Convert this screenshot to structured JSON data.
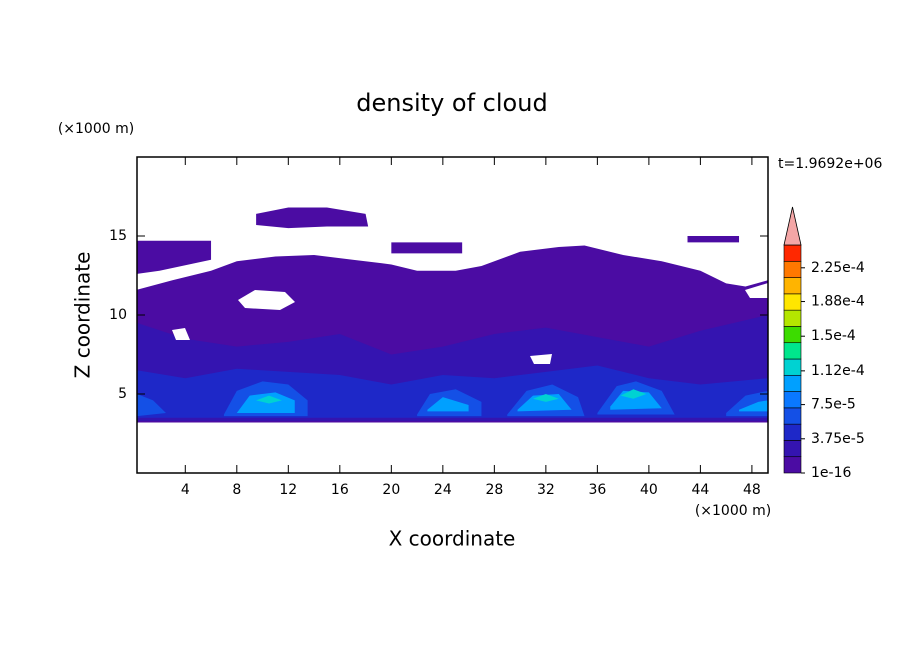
{
  "chart_data": {
    "type": "contour",
    "title": "density of cloud",
    "x_label": "X coordinate",
    "y_label": "Z coordinate",
    "x_unit": "(×1000 m)",
    "y_unit": "(×1000 m)",
    "time_label": "t=1.9692e+06",
    "xlim": [
      0.25,
      49.25
    ],
    "ylim": [
      0,
      20
    ],
    "xticks": [
      4,
      8,
      12,
      16,
      20,
      24,
      28,
      32,
      36,
      40,
      44,
      48
    ],
    "yticks": [
      5,
      10,
      15
    ],
    "colors": [
      "#4b0ca3",
      "#3414b0",
      "#1e28c8",
      "#1450e6",
      "#0a78ff",
      "#00a0ff",
      "#00d2d2",
      "#00e68c",
      "#3cdc00",
      "#b4e600",
      "#ffe600",
      "#ffb400",
      "#ff7800",
      "#ff2800"
    ],
    "extend_color": "#f4a6a6",
    "clim": [
      1e-16,
      0.00025
    ],
    "colorbar_ticks": [
      {
        "value": 1e-16,
        "label": "1e-16"
      },
      {
        "value": 3.75e-05,
        "label": "3.75e-5"
      },
      {
        "value": 7.5e-05,
        "label": "7.5e-5"
      },
      {
        "value": 0.000112,
        "label": "1.12e-4"
      },
      {
        "value": 0.00015,
        "label": "1.5e-4"
      },
      {
        "value": 0.000188,
        "label": "1.88e-4"
      },
      {
        "value": 0.000225,
        "label": "2.25e-4"
      }
    ],
    "regions": [
      {
        "level": 0,
        "x": [
          0.25,
          3,
          6,
          8,
          11,
          14,
          17,
          20,
          22,
          25,
          27,
          30,
          33,
          35,
          38,
          41,
          44,
          46,
          47.5,
          49.25,
          49.25,
          0.25
        ],
        "z": [
          11.6,
          12.2,
          12.8,
          13.4,
          13.7,
          13.8,
          13.5,
          13.2,
          12.8,
          12.8,
          13.1,
          14.0,
          14.3,
          14.4,
          13.8,
          13.4,
          12.8,
          12.0,
          11.8,
          12.2,
          3.2,
          3.2
        ]
      },
      {
        "level": 0,
        "x": [
          0.25,
          6,
          6,
          2,
          0.25
        ],
        "z": [
          14.7,
          14.7,
          13.5,
          12.8,
          12.6
        ]
      },
      {
        "level": 0,
        "x": [
          9.5,
          12,
          15,
          18,
          18.2,
          15,
          12,
          9.5
        ],
        "z": [
          16.4,
          16.8,
          16.8,
          16.4,
          15.6,
          15.6,
          15.5,
          15.7
        ]
      },
      {
        "level": 0,
        "x": [
          20,
          25.5,
          25.5,
          20
        ],
        "z": [
          14.6,
          14.6,
          13.9,
          13.9
        ]
      },
      {
        "level": 0,
        "x": [
          43,
          47,
          47,
          43
        ],
        "z": [
          15,
          15,
          14.6,
          14.6
        ]
      },
      {
        "level": 1,
        "x": [
          0.25,
          4,
          8,
          12,
          16,
          20,
          24,
          28,
          32,
          36,
          40,
          44,
          49.25,
          49.25,
          0.25
        ],
        "z": [
          9.5,
          8.5,
          8.0,
          8.3,
          8.8,
          7.5,
          8.0,
          8.8,
          9.2,
          8.6,
          8.0,
          9.0,
          10.0,
          3.3,
          3.3
        ]
      },
      {
        "level": 2,
        "x": [
          0.25,
          4,
          8,
          12,
          16,
          20,
          24,
          28,
          32,
          36,
          40,
          44,
          49.25,
          49.25,
          0.25
        ],
        "z": [
          6.5,
          6.0,
          6.6,
          6.4,
          6.2,
          5.6,
          6.2,
          6.0,
          6.4,
          6.8,
          6.0,
          5.6,
          6.0,
          3.5,
          3.5
        ]
      },
      {
        "level": 3,
        "x": [
          0.25,
          1.5,
          2.5,
          0.25
        ],
        "z": [
          5.0,
          4.6,
          3.8,
          3.6
        ]
      },
      {
        "level": 3,
        "x": [
          7,
          8,
          10,
          12,
          13.5,
          13.5,
          7
        ],
        "z": [
          3.7,
          5.2,
          5.8,
          5.6,
          4.6,
          3.6,
          3.6
        ]
      },
      {
        "level": 3,
        "x": [
          22,
          23,
          25,
          27,
          27,
          22
        ],
        "z": [
          3.7,
          5.0,
          5.3,
          4.5,
          3.6,
          3.6
        ]
      },
      {
        "level": 3,
        "x": [
          29,
          30.5,
          32.5,
          34.5,
          35,
          29
        ],
        "z": [
          3.7,
          5.2,
          5.6,
          4.8,
          3.6,
          3.6
        ]
      },
      {
        "level": 3,
        "x": [
          36,
          37.5,
          39,
          41,
          42,
          36
        ],
        "z": [
          3.8,
          5.5,
          5.8,
          5.2,
          3.7,
          3.7
        ]
      },
      {
        "level": 3,
        "x": [
          46,
          47.5,
          49.25,
          49.25,
          46
        ],
        "z": [
          3.8,
          4.9,
          5.2,
          3.6,
          3.6
        ]
      },
      {
        "level": 5,
        "x": [
          8,
          9,
          11,
          12.5,
          12.5,
          8
        ],
        "z": [
          3.8,
          4.9,
          5.1,
          4.6,
          3.8,
          3.8
        ]
      },
      {
        "level": 5,
        "x": [
          22.8,
          24,
          26,
          26,
          22.8
        ],
        "z": [
          4.0,
          4.8,
          4.3,
          3.9,
          3.9
        ]
      },
      {
        "level": 5,
        "x": [
          29.8,
          31,
          33,
          34,
          29.8
        ],
        "z": [
          4.0,
          4.9,
          5.0,
          4.0,
          3.9
        ]
      },
      {
        "level": 5,
        "x": [
          37,
          38,
          40,
          41,
          37
        ],
        "z": [
          4.2,
          5.2,
          5.1,
          4.1,
          4.0
        ]
      },
      {
        "level": 5,
        "x": [
          47,
          48.5,
          49.25,
          49.25,
          47
        ],
        "z": [
          4.0,
          4.5,
          4.6,
          3.9,
          3.9
        ]
      },
      {
        "level": 6,
        "x": [
          9.5,
          10.5,
          11.5,
          10.5
        ],
        "z": [
          4.6,
          4.9,
          4.6,
          4.4
        ]
      },
      {
        "level": 6,
        "x": [
          31,
          32,
          33,
          32
        ],
        "z": [
          4.7,
          5.0,
          4.7,
          4.5
        ]
      },
      {
        "level": 6,
        "x": [
          37.8,
          38.8,
          39.8,
          38.8
        ],
        "z": [
          4.9,
          5.3,
          5.0,
          4.7
        ]
      }
    ]
  }
}
